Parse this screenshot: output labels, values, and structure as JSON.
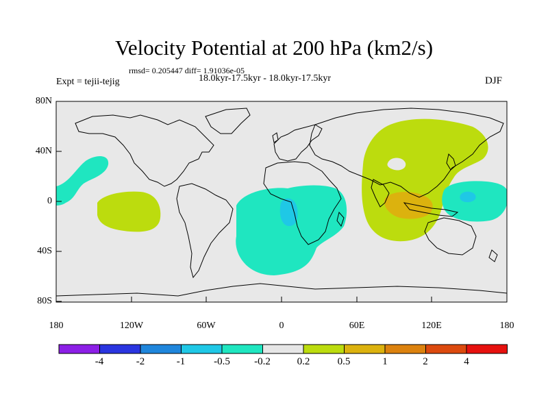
{
  "title": "Velocity Potential at 200 hPa (km2/s)",
  "stats_line": "rmsd= 0.205447 diff= 1.91036e-05",
  "experiment": "Expt = tejii-tejig",
  "period": "18.0kyr-17.5kyr - 18.0kyr-17.5kyr",
  "season": "DJF",
  "lat_ticks": [
    "80N",
    "40N",
    "0",
    "40S",
    "80S"
  ],
  "lon_ticks": [
    "180",
    "120W",
    "60W",
    "0",
    "60E",
    "120E",
    "180"
  ],
  "colorbar": {
    "levels": [
      "-4",
      "-2",
      "-1",
      "-0.5",
      "-0.2",
      "0.2",
      "0.5",
      "1",
      "2",
      "4"
    ],
    "colors": [
      "#8c1fe6",
      "#2a35e0",
      "#1f86dc",
      "#1fc8e6",
      "#1fe6c0",
      "#e6e6e6",
      "#bcdc0e",
      "#dcb20e",
      "#dc820e",
      "#dc4a0e",
      "#e6110e"
    ]
  },
  "colors": {
    "background": "#e8e8e8",
    "land": "#000000"
  }
}
